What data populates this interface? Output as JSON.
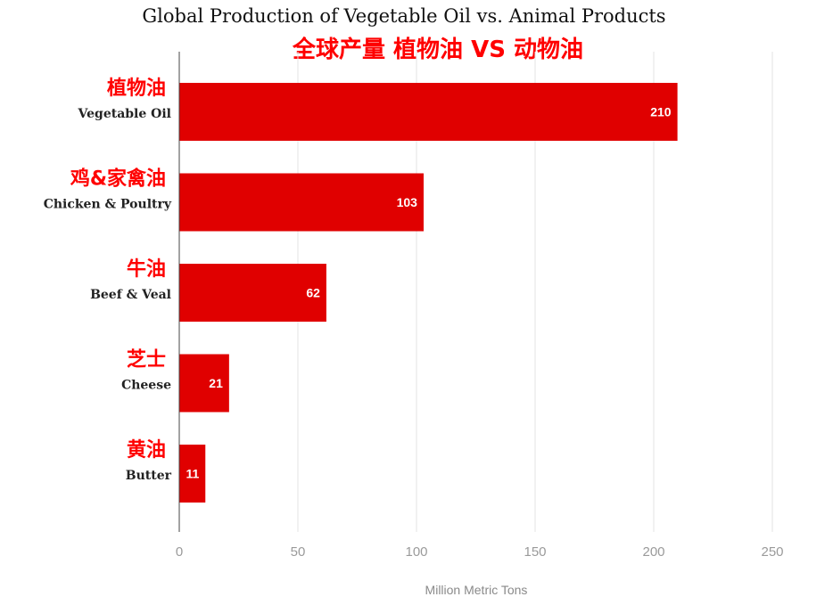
{
  "chart_data": {
    "type": "bar",
    "orientation": "horizontal",
    "title": "Global Production of Vegetable Oil vs. Animal Products",
    "subtitle": "全球产量 植物油 VS 动物油",
    "xlabel": "Million Metric Tons",
    "ylabel": "",
    "xlim": [
      0,
      250
    ],
    "xticks": [
      "0",
      "50",
      "100",
      "150",
      "200",
      "250"
    ],
    "grid": true,
    "legend": "none",
    "categories": [
      {
        "zh": "植物油",
        "en": "Vegetable Oil"
      },
      {
        "zh": "鸡&家禽油",
        "en": "Chicken & Poultry"
      },
      {
        "zh": "牛油",
        "en": "Beef & Veal"
      },
      {
        "zh": "芝士",
        "en": "Cheese"
      },
      {
        "zh": "黄油",
        "en": "Butter"
      }
    ],
    "values": [
      210,
      103,
      62,
      21,
      11
    ],
    "data_labels": [
      "210",
      "103",
      "62",
      "21",
      "11"
    ],
    "colors": {
      "bar": "#e00000",
      "accent_text": "#ff0000",
      "grid": "#e3e3e3",
      "axis": "#444444"
    }
  }
}
